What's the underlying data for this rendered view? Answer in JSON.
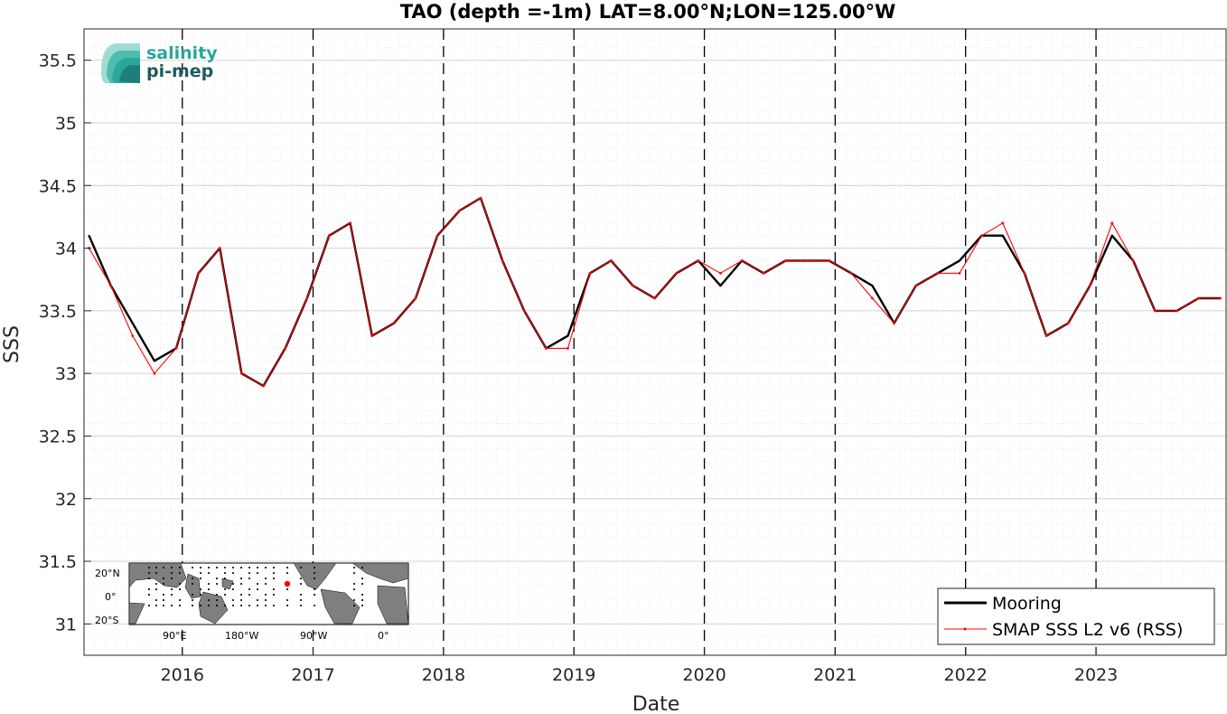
{
  "chart_data": {
    "type": "line",
    "title": "TAO (depth =-1m) LAT=8.00°N;LON=125.00°W",
    "xlabel": "Date",
    "ylabel": "SSS",
    "xlim": [
      "2015-04-01",
      "2023-12-31"
    ],
    "ylim": [
      30.75,
      35.75
    ],
    "x_ticks": [
      "2016",
      "2017",
      "2018",
      "2019",
      "2020",
      "2021",
      "2022",
      "2023"
    ],
    "y_ticks": [
      "31",
      "31.5",
      "32",
      "32.5",
      "33",
      "33.5",
      "34",
      "34.5",
      "35",
      "35.5"
    ],
    "grid": true,
    "minor_grid": true,
    "year_boundary_lines": "dashed",
    "legend_position": "bottom-right",
    "series": [
      {
        "name": "Mooring",
        "color": "#000000",
        "style": "thick-line",
        "x": [
          "2015-04",
          "2015-06",
          "2015-08",
          "2015-10",
          "2015-12",
          "2016-02",
          "2016-04",
          "2016-06",
          "2016-08",
          "2016-10",
          "2016-12",
          "2017-02",
          "2017-04",
          "2017-06",
          "2017-08",
          "2017-10",
          "2017-12",
          "2018-02",
          "2018-04",
          "2018-06",
          "2018-08",
          "2018-10",
          "2018-12",
          "2019-02",
          "2019-04",
          "2019-06",
          "2019-08",
          "2019-10",
          "2019-12",
          "2020-02",
          "2020-04",
          "2020-06",
          "2020-08",
          "2020-10",
          "2020-12",
          "2021-02",
          "2021-04",
          "2021-06",
          "2021-08",
          "2021-10",
          "2021-12",
          "2022-02",
          "2022-04",
          "2022-06",
          "2022-08",
          "2022-10",
          "2022-12",
          "2023-02",
          "2023-04",
          "2023-06",
          "2023-08",
          "2023-10",
          "2023-12"
        ],
        "y": [
          34.1,
          33.7,
          33.4,
          33.1,
          33.2,
          33.8,
          34.0,
          33.0,
          32.9,
          33.2,
          33.6,
          34.1,
          34.2,
          33.3,
          33.4,
          33.6,
          34.1,
          34.3,
          34.4,
          33.9,
          33.5,
          33.2,
          33.3,
          33.8,
          33.9,
          33.7,
          33.6,
          33.8,
          33.9,
          33.7,
          33.9,
          33.8,
          33.9,
          33.9,
          33.9,
          33.8,
          33.7,
          33.4,
          33.7,
          33.8,
          33.9,
          34.1,
          34.1,
          33.8,
          33.3,
          33.4,
          33.7,
          34.1,
          33.9,
          33.5,
          33.5,
          33.6,
          33.6
        ]
      },
      {
        "name": "SMAP SSS L2 v6 (RSS)",
        "color": "#ff0000",
        "style": "line-with-dots",
        "x": [
          "2015-04",
          "2015-06",
          "2015-08",
          "2015-10",
          "2015-12",
          "2016-02",
          "2016-04",
          "2016-06",
          "2016-08",
          "2016-10",
          "2016-12",
          "2017-02",
          "2017-04",
          "2017-06",
          "2017-08",
          "2017-10",
          "2017-12",
          "2018-02",
          "2018-04",
          "2018-06",
          "2018-08",
          "2018-10",
          "2018-12",
          "2019-02",
          "2019-04",
          "2019-06",
          "2019-08",
          "2019-10",
          "2019-12",
          "2020-02",
          "2020-04",
          "2020-06",
          "2020-08",
          "2020-10",
          "2020-12",
          "2021-02",
          "2021-04",
          "2021-06",
          "2021-08",
          "2021-10",
          "2021-12",
          "2022-02",
          "2022-04",
          "2022-06",
          "2022-08",
          "2022-10",
          "2022-12",
          "2023-02",
          "2023-04",
          "2023-06",
          "2023-08",
          "2023-10",
          "2023-12"
        ],
        "y": [
          34.0,
          33.7,
          33.3,
          33.0,
          33.2,
          33.8,
          34.0,
          33.0,
          32.9,
          33.2,
          33.6,
          34.1,
          34.2,
          33.3,
          33.4,
          33.6,
          34.1,
          34.3,
          34.4,
          33.9,
          33.5,
          33.2,
          33.2,
          33.8,
          33.9,
          33.7,
          33.6,
          33.8,
          33.9,
          33.8,
          33.9,
          33.8,
          33.9,
          33.9,
          33.9,
          33.8,
          33.6,
          33.4,
          33.7,
          33.8,
          33.8,
          34.1,
          34.2,
          33.8,
          33.3,
          33.4,
          33.7,
          34.2,
          33.9,
          33.5,
          33.5,
          33.6,
          33.6
        ]
      }
    ]
  },
  "logo": {
    "line1": "salinity",
    "line2": "pi-mep",
    "color_line1": "#2aa79b",
    "color_line2": "#1e5a5e"
  },
  "inset_map": {
    "y_labels": [
      "20°N",
      "0°",
      "20°S"
    ],
    "x_labels": [
      "90°E",
      "180°W",
      "90°W",
      "0°"
    ],
    "marker_color": "#ff0000"
  }
}
